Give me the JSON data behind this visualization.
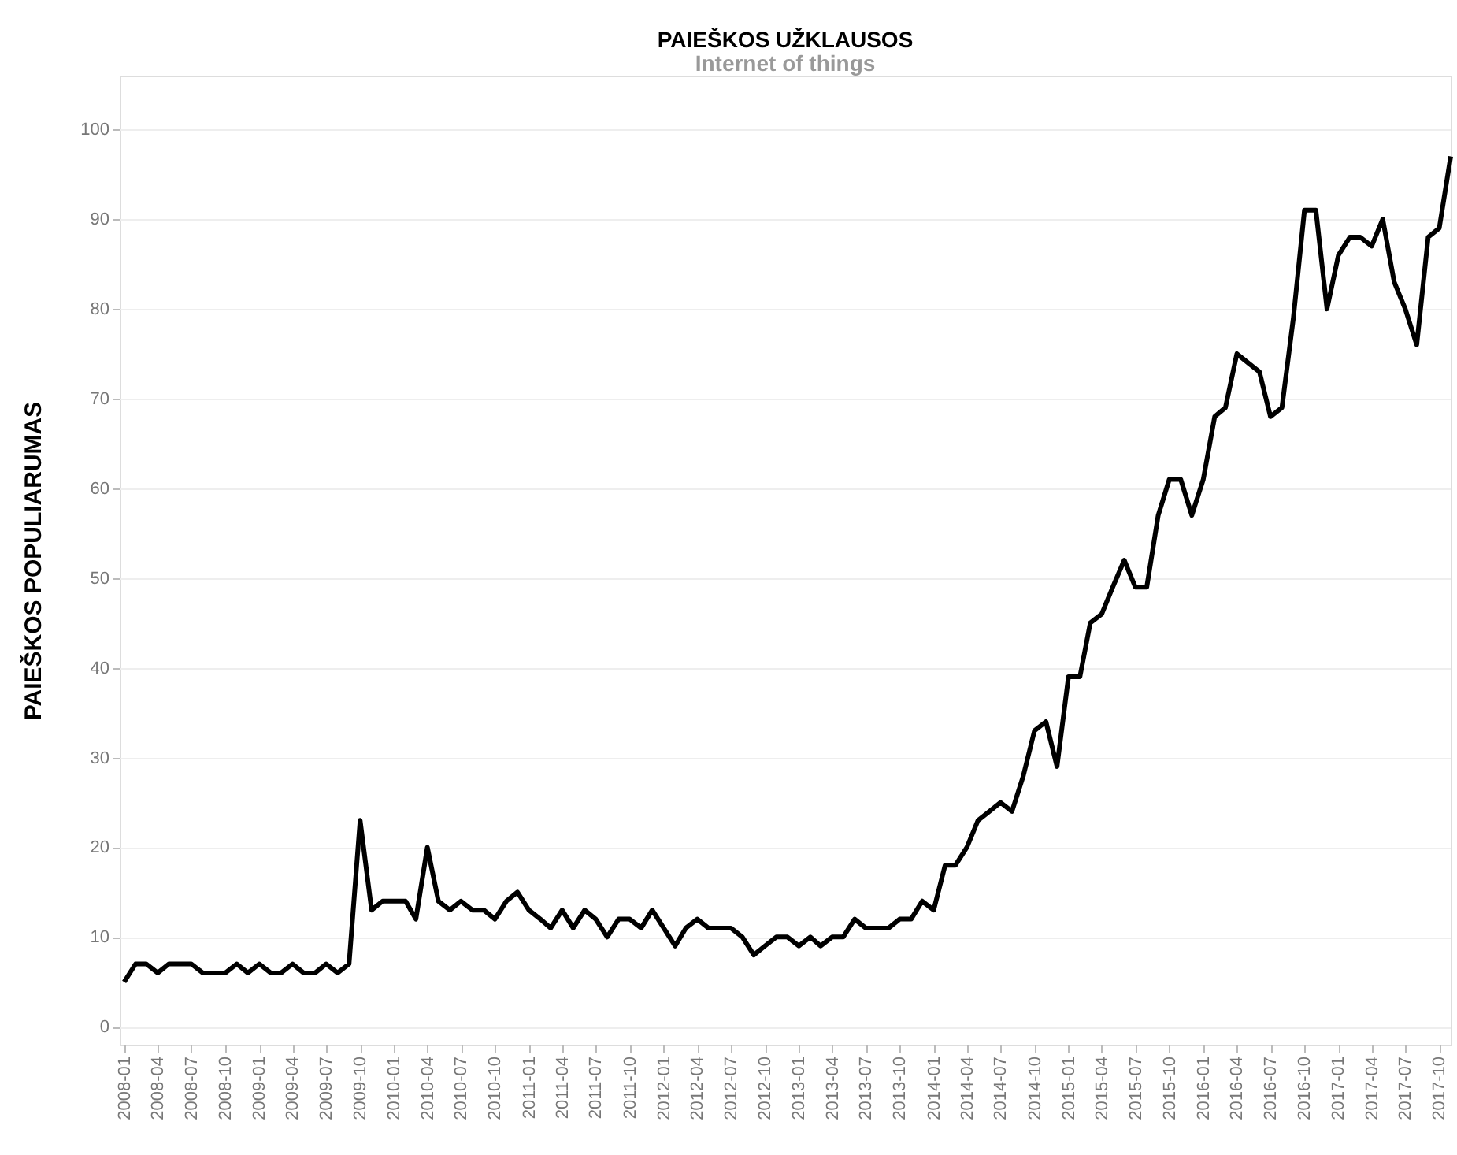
{
  "chart_data": {
    "type": "line",
    "title": "PAIEŠKOS UŽKLAUSOS",
    "subtitle": "Internet of things",
    "ylabel": "PAIEŠKOS POPULIARUMAS",
    "x": [
      "2008-01",
      "2008-02",
      "2008-03",
      "2008-04",
      "2008-05",
      "2008-06",
      "2008-07",
      "2008-08",
      "2008-09",
      "2008-10",
      "2008-11",
      "2008-12",
      "2009-01",
      "2009-02",
      "2009-03",
      "2009-04",
      "2009-05",
      "2009-06",
      "2009-07",
      "2009-08",
      "2009-09",
      "2009-10",
      "2009-11",
      "2009-12",
      "2010-01",
      "2010-02",
      "2010-03",
      "2010-04",
      "2010-05",
      "2010-06",
      "2010-07",
      "2010-08",
      "2010-09",
      "2010-10",
      "2010-11",
      "2010-12",
      "2011-01",
      "2011-02",
      "2011-03",
      "2011-04",
      "2011-05",
      "2011-06",
      "2011-07",
      "2011-08",
      "2011-09",
      "2011-10",
      "2011-11",
      "2011-12",
      "2012-01",
      "2012-02",
      "2012-03",
      "2012-04",
      "2012-05",
      "2012-06",
      "2012-07",
      "2012-08",
      "2012-09",
      "2012-10",
      "2012-11",
      "2012-12",
      "2013-01",
      "2013-02",
      "2013-03",
      "2013-04",
      "2013-05",
      "2013-06",
      "2013-07",
      "2013-08",
      "2013-09",
      "2013-10",
      "2013-11",
      "2013-12",
      "2014-01",
      "2014-02",
      "2014-03",
      "2014-04",
      "2014-05",
      "2014-06",
      "2014-07",
      "2014-08",
      "2014-09",
      "2014-10",
      "2014-11",
      "2014-12",
      "2015-01",
      "2015-02",
      "2015-03",
      "2015-04",
      "2015-05",
      "2015-06",
      "2015-07",
      "2015-08",
      "2015-09",
      "2015-10",
      "2015-11",
      "2015-12",
      "2016-01",
      "2016-02",
      "2016-03",
      "2016-04",
      "2016-05",
      "2016-06",
      "2016-07",
      "2016-08",
      "2016-09",
      "2016-10",
      "2016-11",
      "2016-12",
      "2017-01",
      "2017-02",
      "2017-03",
      "2017-04",
      "2017-05",
      "2017-06",
      "2017-07",
      "2017-08",
      "2017-09",
      "2017-10",
      "2017-11"
    ],
    "series": [
      {
        "color": "#000000",
        "values": [
          5,
          7,
          7,
          6,
          7,
          7,
          7,
          6,
          6,
          6,
          7,
          6,
          7,
          6,
          6,
          7,
          6,
          6,
          7,
          6,
          7,
          23,
          13,
          14,
          14,
          14,
          12,
          20,
          14,
          13,
          14,
          13,
          13,
          12,
          14,
          15,
          13,
          12,
          11,
          13,
          11,
          13,
          12,
          10,
          12,
          12,
          11,
          13,
          11,
          9,
          11,
          12,
          11,
          11,
          11,
          10,
          8,
          9,
          10,
          10,
          9,
          10,
          9,
          10,
          10,
          12,
          11,
          11,
          11,
          12,
          12,
          14,
          13,
          18,
          18,
          20,
          23,
          24,
          25,
          24,
          28,
          33,
          34,
          29,
          39,
          39,
          45,
          46,
          49,
          52,
          49,
          49,
          57,
          61,
          61,
          57,
          61,
          68,
          69,
          75,
          74,
          73,
          68,
          69,
          79,
          91,
          91,
          80,
          86,
          88,
          88,
          87,
          90,
          83,
          80,
          76,
          88,
          89,
          97
        ]
      }
    ],
    "xlim": [
      "2007-12-20",
      "2017-11"
    ],
    "xticks": [
      "2008-01",
      "2008-04",
      "2008-07",
      "2008-10",
      "2009-01",
      "2009-04",
      "2009-07",
      "2009-10",
      "2010-01",
      "2010-04",
      "2010-07",
      "2010-10",
      "2011-01",
      "2011-04",
      "2011-07",
      "2011-10",
      "2012-01",
      "2012-04",
      "2012-07",
      "2012-10",
      "2013-01",
      "2013-04",
      "2013-07",
      "2013-10",
      "2014-01",
      "2014-04",
      "2014-07",
      "2014-10",
      "2015-01",
      "2015-04",
      "2015-07",
      "2015-10",
      "2016-01",
      "2016-04",
      "2016-07",
      "2016-10",
      "2017-01",
      "2017-04",
      "2017-07",
      "2017-10"
    ],
    "ylim": [
      -2,
      106
    ],
    "yticks": [
      0,
      10,
      20,
      30,
      40,
      50,
      60,
      70,
      80,
      90,
      100
    ],
    "grid": "y",
    "legend": false,
    "marker": "none",
    "line_style": "solid"
  }
}
